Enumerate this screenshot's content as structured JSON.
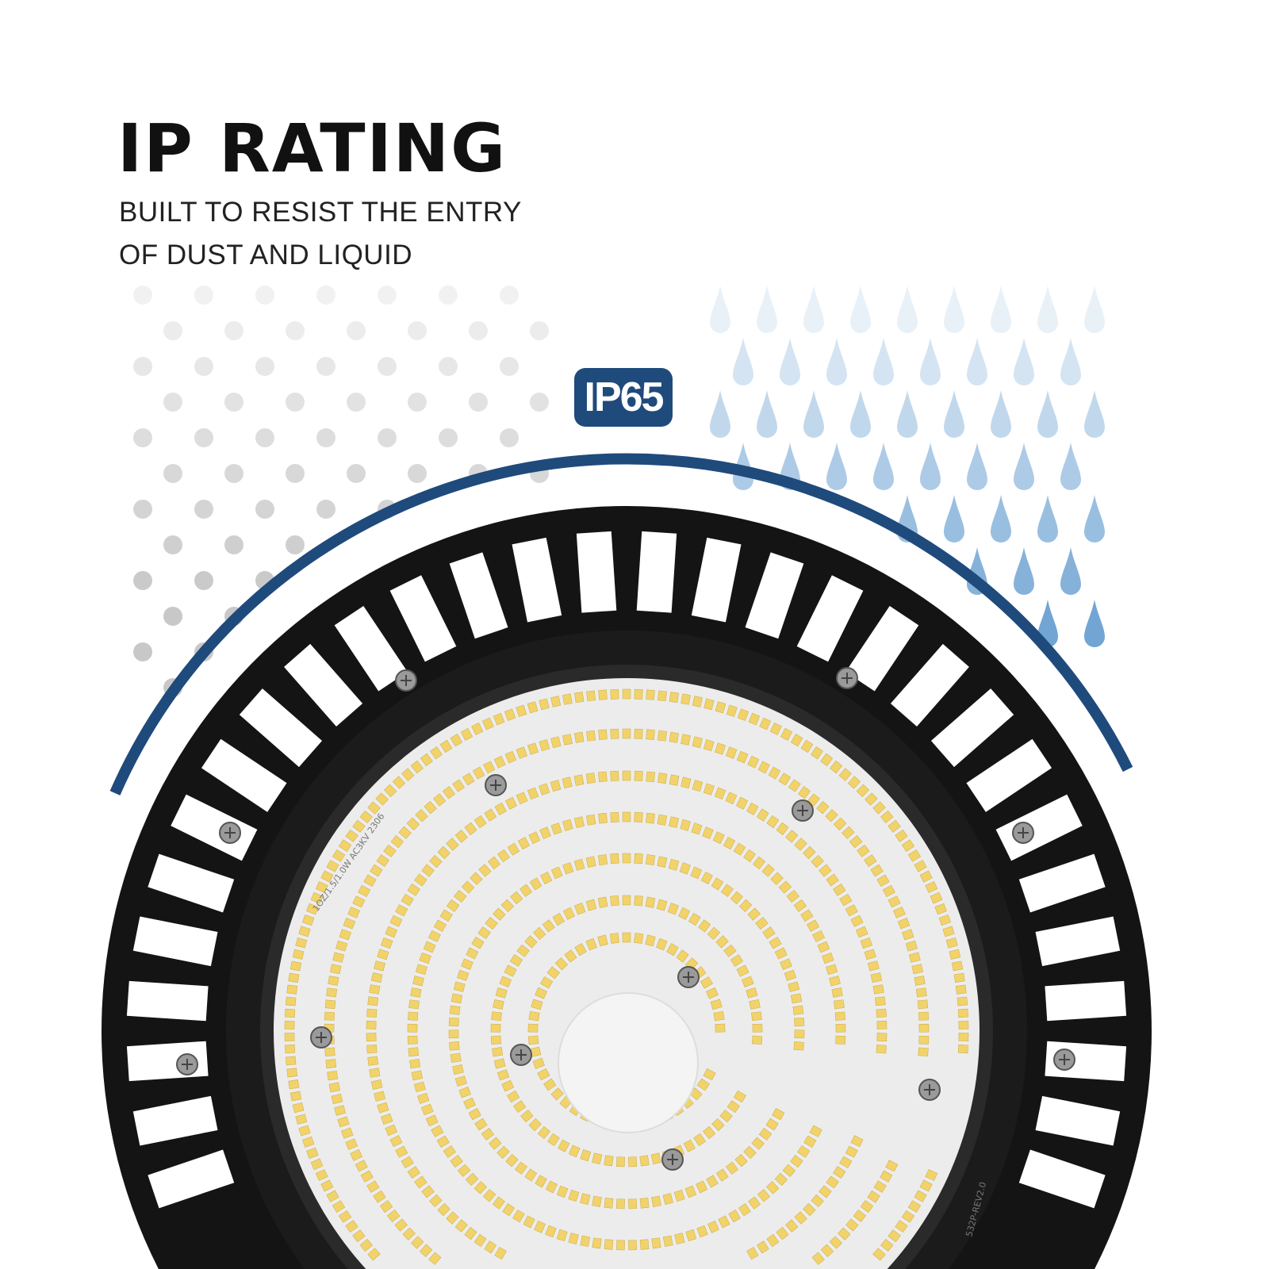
{
  "heading": "IP RATING",
  "subheading_lines": [
    "BUILT TO RESIST THE ENTRY",
    "OF DUST AND LIQUID"
  ],
  "badge": "IP65",
  "pcb_text": [
    "1OZ/1.5/1.0W AC3KV 2306",
    "532P-REV2.0"
  ],
  "colors": {
    "accent": "#1f4a7c",
    "drop": "#4a8cc8",
    "dust": "#c8c8c8",
    "housing": "#141414",
    "led": "#f2d36a"
  }
}
